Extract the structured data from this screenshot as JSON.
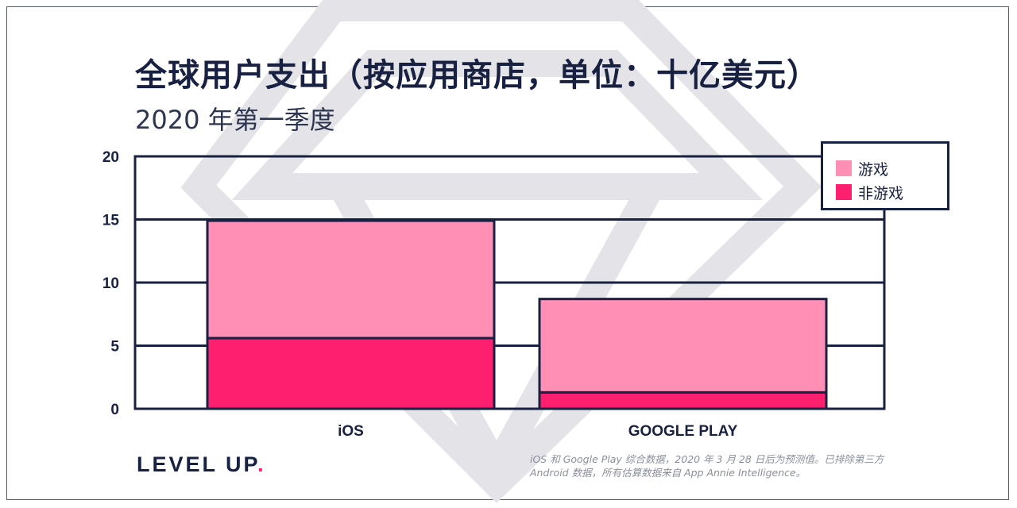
{
  "header": {
    "title": "全球用户支出（按应用商店，单位：十亿美元）",
    "subtitle": "2020 年第一季度"
  },
  "chart_data": {
    "type": "bar",
    "stacked": true,
    "categories": [
      "iOS",
      "GOOGLE PLAY"
    ],
    "series": [
      {
        "name": "非游戏",
        "values": [
          5.6,
          1.3
        ],
        "color": "#ff1f6e"
      },
      {
        "name": "游戏",
        "values": [
          9.3,
          7.4
        ],
        "color": "#ff8fb4"
      }
    ],
    "ylim": [
      0,
      20
    ],
    "yticks": [
      0,
      5,
      10,
      15,
      20
    ],
    "ytick_labels": [
      "0",
      "5",
      "10",
      "15",
      "20"
    ],
    "grid": true,
    "legend_position": "top-right",
    "legend": [
      {
        "label": "游戏",
        "color": "#ff8fb4"
      },
      {
        "label": "非游戏",
        "color": "#ff1f6e"
      }
    ],
    "colors": {
      "axis": "#182142",
      "game": "#ff8fb4",
      "nongame": "#ff1f6e"
    }
  },
  "branding": {
    "logo_text": "LEVEL UP",
    "logo_dot": ".",
    "logo_dot_color": "#ff1f6e"
  },
  "footnote": {
    "line1": "iOS 和 Google Play 综合数据，2020 年 3 月 28 日后为预测值。已排除第三方",
    "line2": "Android 数据，所有估算数据来自 App Annie Intelligence。"
  }
}
